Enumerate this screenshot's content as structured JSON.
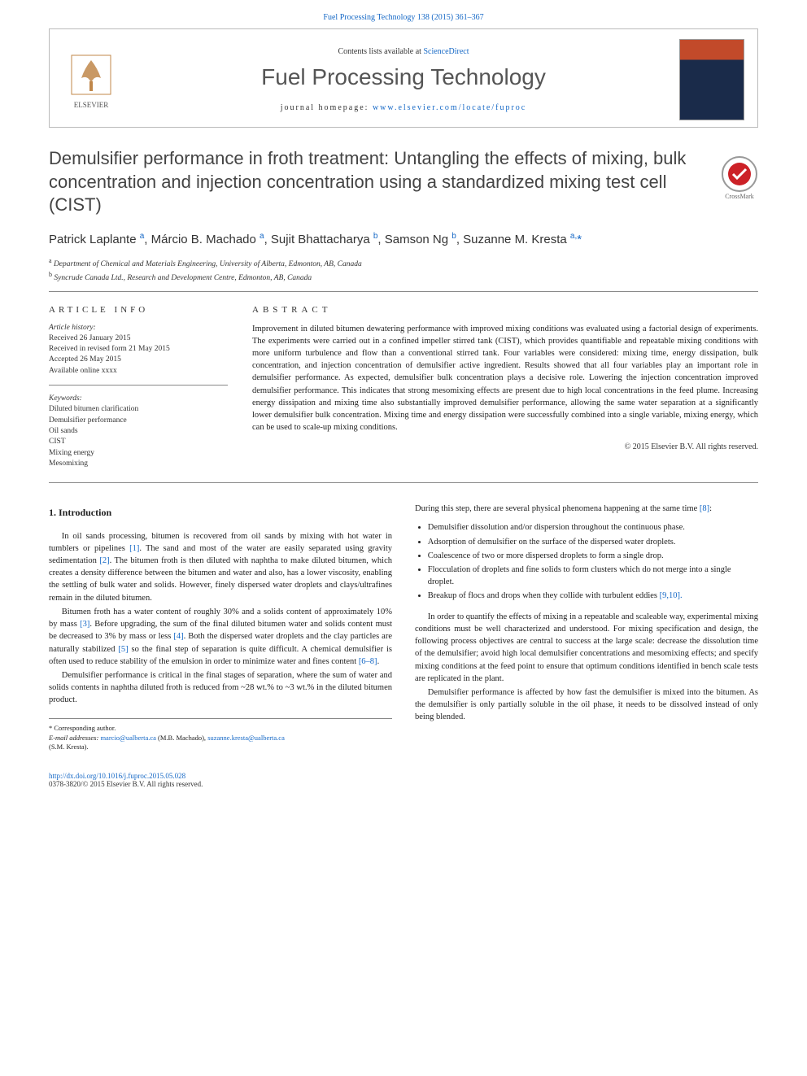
{
  "top_link": "Fuel Processing Technology 138 (2015) 361–367",
  "header": {
    "contents_prefix": "Contents lists available at ",
    "contents_link": "ScienceDirect",
    "journal_title": "Fuel Processing Technology",
    "homepage_prefix": "journal homepage: ",
    "homepage_link": "www.elsevier.com/locate/fuproc",
    "publisher": "ELSEVIER"
  },
  "crossmark_label": "CrossMark",
  "article": {
    "title": "Demulsifier performance in froth treatment: Untangling the effects of mixing, bulk concentration and injection concentration using a standardized mixing test cell (CIST)",
    "authors_html": "Patrick Laplante <sup>a</sup>, Márcio B. Machado <sup>a</sup>, Sujit Bhattacharya <sup>b</sup>, Samson Ng <sup>b</sup>, Suzanne M. Kresta <sup>a,</sup><span class='star'>*</span>",
    "affiliations": {
      "a": "Department of Chemical and Materials Engineering, University of Alberta, Edmonton, AB, Canada",
      "b": "Syncrude Canada Ltd., Research and Development Centre, Edmonton, AB, Canada"
    }
  },
  "info": {
    "head": "article info",
    "history_title": "Article history:",
    "received": "Received 26 January 2015",
    "revised": "Received in revised form 21 May 2015",
    "accepted": "Accepted 26 May 2015",
    "online": "Available online xxxx",
    "keywords_title": "Keywords:",
    "keywords": [
      "Diluted bitumen clarification",
      "Demulsifier performance",
      "Oil sands",
      "CIST",
      "Mixing energy",
      "Mesomixing"
    ]
  },
  "abstract": {
    "head": "abstract",
    "text": "Improvement in diluted bitumen dewatering performance with improved mixing conditions was evaluated using a factorial design of experiments. The experiments were carried out in a confined impeller stirred tank (CIST), which provides quantifiable and repeatable mixing conditions with more uniform turbulence and flow than a conventional stirred tank. Four variables were considered: mixing time, energy dissipation, bulk concentration, and injection concentration of demulsifier active ingredient. Results showed that all four variables play an important role in demulsifier performance. As expected, demulsifier bulk concentration plays a decisive role. Lowering the injection concentration improved demulsifier performance. This indicates that strong mesomixing effects are present due to high local concentrations in the feed plume. Increasing energy dissipation and mixing time also substantially improved demulsifier performance, allowing the same water separation at a significantly lower demulsifier bulk concentration. Mixing time and energy dissipation were successfully combined into a single variable, mixing energy, which can be used to scale-up mixing conditions.",
    "copyright": "© 2015 Elsevier B.V. All rights reserved."
  },
  "body": {
    "intro_head": "1. Introduction",
    "p1": "In oil sands processing, bitumen is recovered from oil sands by mixing with hot water in tumblers or pipelines ",
    "c1": "[1]",
    "p1b": ". The sand and most of the water are easily separated using gravity sedimentation ",
    "c2": "[2]",
    "p1c": ". The bitumen froth is then diluted with naphtha to make diluted bitumen, which creates a density difference between the bitumen and water and also, has a lower viscosity, enabling the settling of bulk water and solids. However, finely dispersed water droplets and clays/ultrafines remain in the diluted bitumen.",
    "p2a": "Bitumen froth has a water content of roughly 30% and a solids content of approximately 10% by mass ",
    "c3": "[3]",
    "p2b": ". Before upgrading, the sum of the final diluted bitumen water and solids content must be decreased to 3% by mass or less ",
    "c4": "[4]",
    "p2c": ". Both the dispersed water droplets and the clay particles are naturally stabilized ",
    "c5": "[5]",
    "p2d": " so the final step of separation is quite difficult. A chemical demulsifier is often used to reduce stability of the emulsion in order to minimize water and fines content ",
    "c68": "[6–8]",
    "p2e": ".",
    "p3": "Demulsifier performance is critical in the final stages of separation, where the sum of water and solids contents in naphtha diluted froth is reduced from ~28 wt.% to ~3 wt.% in the diluted bitumen product.",
    "p4a": "During this step, there are several physical phenomena happening at the same time ",
    "c8": "[8]",
    "p4b": ":",
    "bullets": [
      "Demulsifier dissolution and/or dispersion throughout the continuous phase.",
      "Adsorption of demulsifier on the surface of the dispersed water droplets.",
      "Coalescence of two or more dispersed droplets to form a single drop.",
      "Flocculation of droplets and fine solids to form clusters which do not merge into a single droplet.",
      "Breakup of flocs and drops when they collide with turbulent eddies"
    ],
    "c910": "[9,10]",
    "p5": "In order to quantify the effects of mixing in a repeatable and scaleable way, experimental mixing conditions must be well characterized and understood. For mixing specification and design, the following process objectives are central to success at the large scale: decrease the dissolution time of the demulsifier; avoid high local demulsifier concentrations and mesomixing effects; and specify mixing conditions at the feed point to ensure that optimum conditions identified in bench scale tests are replicated in the plant.",
    "p6": "Demulsifier performance is affected by how fast the demulsifier is mixed into the bitumen. As the demulsifier is only partially soluble in the oil phase, it needs to be dissolved instead of only being blended."
  },
  "footnote": {
    "corresponding": "* Corresponding author.",
    "email_label": "E-mail addresses: ",
    "email1": "marcio@ualberta.ca",
    "email1_name": " (M.B. Machado), ",
    "email2": "suzanne.kresta@ualberta.ca",
    "email2_name": " (S.M. Kresta)."
  },
  "footer": {
    "doi": "http://dx.doi.org/10.1016/j.fuproc.2015.05.028",
    "issn": "0378-3820/© 2015 Elsevier B.V. All rights reserved."
  },
  "colors": {
    "link": "#1568c6",
    "text": "#333333",
    "border": "#888888"
  }
}
